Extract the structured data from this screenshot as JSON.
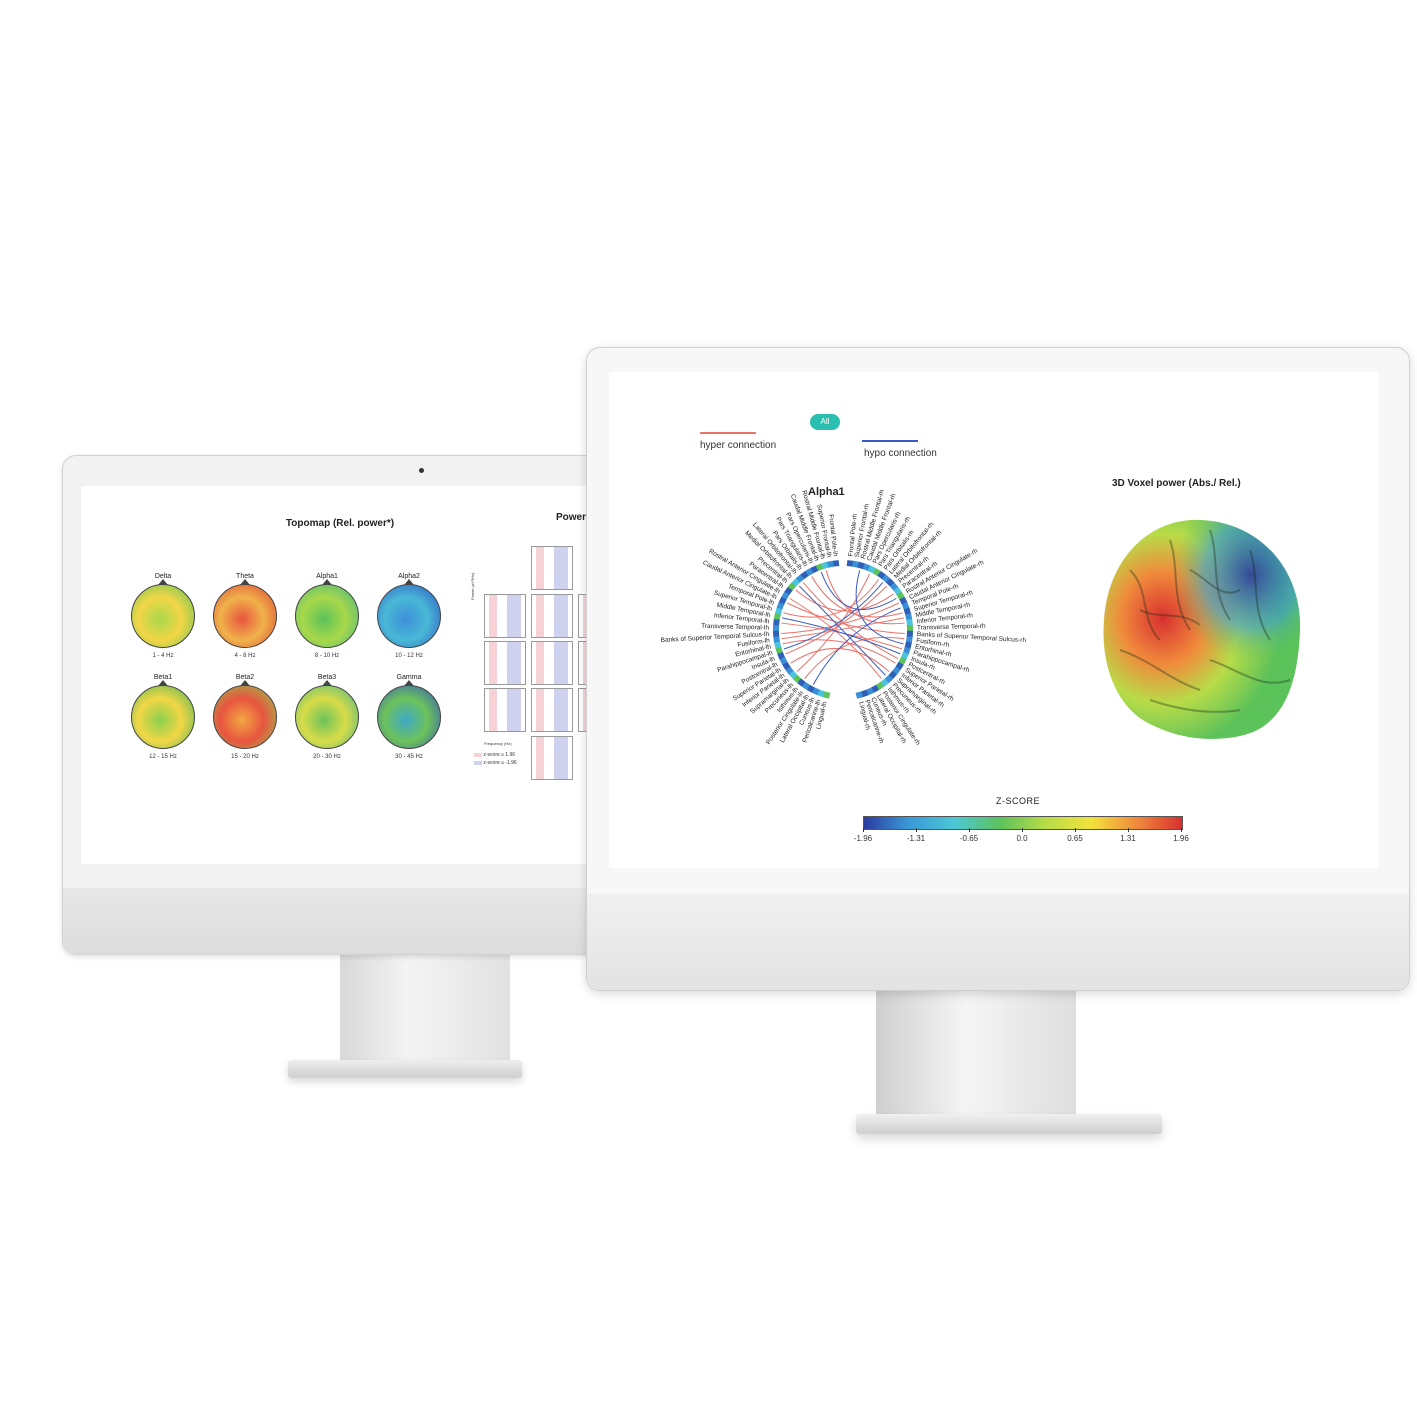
{
  "back_screen": {
    "topomap": {
      "title": "Topomap (Rel. power*)",
      "bands": [
        {
          "name": "Delta",
          "range": "1 - 4 Hz",
          "palette": [
            "#f2d646",
            "#a8d84a",
            "#5bc25a"
          ]
        },
        {
          "name": "Theta",
          "range": "4 - 8 Hz",
          "palette": [
            "#f0b24a",
            "#e8553f",
            "#d93e36"
          ]
        },
        {
          "name": "Alpha1",
          "range": "8 - 10 Hz",
          "palette": [
            "#a8d84a",
            "#5bc25a",
            "#3fb48a"
          ]
        },
        {
          "name": "Alpha2",
          "range": "10 - 12 Hz",
          "palette": [
            "#49b8d6",
            "#3d8fd8",
            "#2e4fc2"
          ]
        },
        {
          "name": "Beta1",
          "range": "12 - 15 Hz",
          "palette": [
            "#f2d646",
            "#8ad14c",
            "#3fb45a"
          ]
        },
        {
          "name": "Beta2",
          "range": "15 - 20 Hz",
          "palette": [
            "#e8553f",
            "#f2a742",
            "#8ad14c"
          ]
        },
        {
          "name": "Beta3",
          "range": "20 - 30 Hz",
          "palette": [
            "#d8dc48",
            "#6cc25a",
            "#3fb48a"
          ]
        },
        {
          "name": "Gamma",
          "range": "30 - 45 Hz",
          "palette": [
            "#6cc25a",
            "#3fa8c8",
            "#2e4fc2"
          ]
        }
      ]
    },
    "power_spectrum": {
      "title": "Power s",
      "ylabel": "Power (uV²/Hz)",
      "xlabel": "Frequency (Hz)",
      "legend": [
        "z-score ≥ 1.96",
        "z-score ≤ -1.96"
      ]
    }
  },
  "front_screen": {
    "filter_pill": "All",
    "legend": {
      "hyper_label": "hyper connection",
      "hyper_color": "#e8736b",
      "hypo_label": "hypo connection",
      "hypo_color": "#3a5cc2"
    },
    "connectivity_title": "Alpha1",
    "voxel_title": "3D Voxel power (Abs./ Rel.)",
    "regions_lh": [
      "Frontal Pole-lh",
      "Superior Frontal-lh",
      "Rostral Middle Frontal-lh",
      "Caudal Middle Frontal-lh",
      "Pars Opercularis-lh",
      "Pars Triangularis-lh",
      "Pars Orbitalis-lh",
      "Lateral Orbitofrontal-lh",
      "Medial Orbitofrontal-lh",
      "Precentral-lh",
      "Paracentral-lh",
      "Rostral Anterior Cingulate-lh",
      "Caudal Anterior Cingulate-lh",
      "Temporal Pole-lh",
      "Superior Temporal-lh",
      "Middle Temporal-lh",
      "Inferior Temporal-lh",
      "Transverse Temporal-lh",
      "Banks of Superior Temporal Sulcus-lh",
      "Fusiform-lh",
      "Entorhinal-lh",
      "Parahippocampal-lh",
      "Insula-lh",
      "Postcentral-lh",
      "Superior Parietal-lh",
      "Inferior Parietal-lh",
      "Supramarginal-lh",
      "Precuneus-lh",
      "Isthmus-lh",
      "Posterior Cingulate-lh",
      "Lateral Occipital-lh",
      "Cuneus-lh",
      "Pericalcarine-lh",
      "Lingual-lh"
    ],
    "regions_rh": [
      "Frontal Pole-rh",
      "Superior Frontal-rh",
      "Rostral Middle Frontal-rh",
      "Caudal Middle Frontal-rh",
      "Pars Opercularis-rh",
      "Pars Triangularis-rh",
      "Pars Orbitalis-rh",
      "Lateral Orbitofrontal-rh",
      "Medial Orbitofrontal-rh",
      "Precentral-rh",
      "Paracentral-rh",
      "Rostral Anterior Cingulate-rh",
      "Caudal Anterior Cingulate-rh",
      "Temporal Pole-rh",
      "Superior Temporal-rh",
      "Middle Temporal-rh",
      "Inferior Temporal-rh",
      "Transverse Temporal-rh",
      "Banks of Superior Temporal Sulcus-rh",
      "Fusiform-rh",
      "Entorhinal-rh",
      "Parahippocampal-rh",
      "Insula-rh",
      "Postcentral-rh",
      "Superior Parietal-rh",
      "Inferior Parietal-rh",
      "Supramarginal-rh",
      "Precuneus-rh",
      "Isthmus-rh",
      "Posterior Cingulate-rh",
      "Lateral Occipital-rh",
      "Cuneus-rh",
      "Pericalcarine-rh",
      "Lingual-rh"
    ],
    "zscore": {
      "title": "Z-SCORE",
      "ticks": [
        "-1.96",
        "-1.31",
        "-0.65",
        "0.0",
        "0.65",
        "1.31",
        "1.96"
      ],
      "gradient": [
        "#2b3aa0",
        "#3a9ad8",
        "#4cc7d6",
        "#5cc25a",
        "#b8dc48",
        "#f2e23c",
        "#f08a3c",
        "#d8302f"
      ]
    }
  }
}
